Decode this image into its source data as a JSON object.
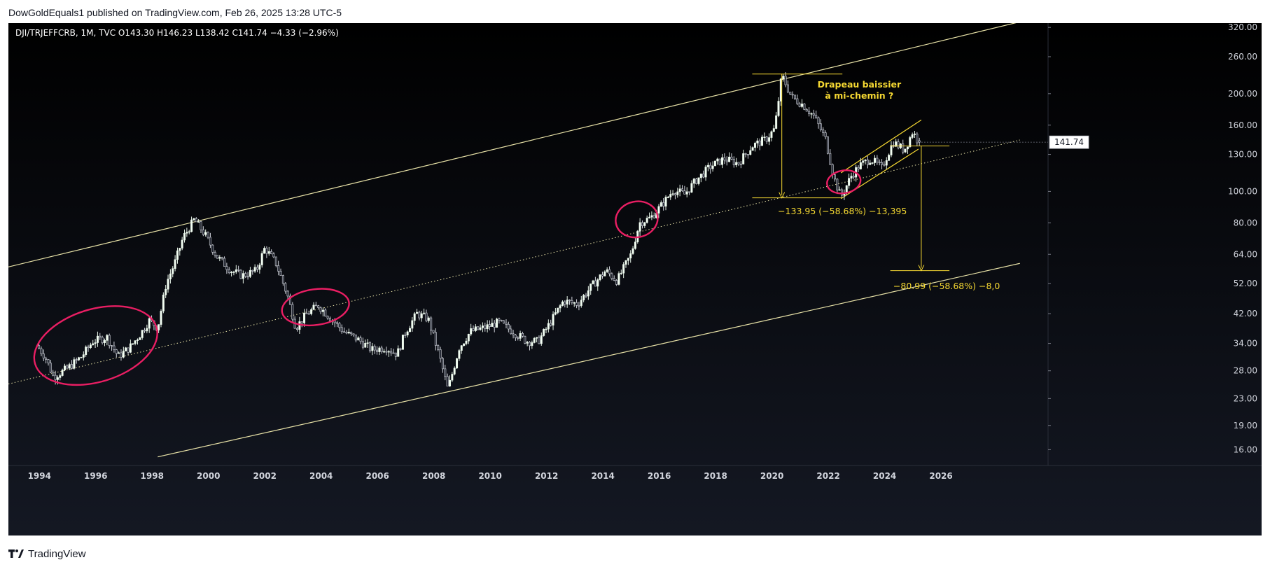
{
  "published_line": "DowGoldEquals1 published on TradingView.com, Feb 26, 2025 13:28 UTC-5",
  "footer": {
    "brand": "TradingView",
    "logo_icon": "tradingview-logo-icon"
  },
  "colors": {
    "background_top": "#000000",
    "background_bottom": "#141823",
    "channel_line": "#e9e3a8",
    "annotation_yellow": "#f5d832",
    "ellipse": "#e91e63",
    "candle_up": "#e8f5e9",
    "candle_down": "#d1d4dc",
    "axis_text": "#d1d4dc"
  },
  "chart_data": {
    "type": "candlestick",
    "symbol_line": "DJI/TRJEFFCRB, 1M, TVC  O143.30  H146.23  L138.42  C141.74  −4.33 (−2.96%)",
    "ohlc": {
      "open": 143.3,
      "high": 146.23,
      "low": 138.42,
      "close": 141.74,
      "change": -4.33,
      "change_pct": -2.96
    },
    "y_scale": "log",
    "y_ticks": [
      "320.00",
      "260.00",
      "200.00",
      "160.00",
      "130.00",
      "100.00",
      "80.00",
      "64.00",
      "52.00",
      "42.00",
      "34.00",
      "28.00",
      "23.00",
      "19.00",
      "16.00"
    ],
    "x_ticks": [
      "1994",
      "1996",
      "1998",
      "2000",
      "2002",
      "2004",
      "2006",
      "2008",
      "2010",
      "2012",
      "2014",
      "2016",
      "2018",
      "2020",
      "2022",
      "2024",
      "2026"
    ],
    "xlim": [
      1992.9,
      2029.8
    ],
    "ylim": [
      14.3,
      330
    ],
    "last_price_label": "141.74",
    "last_price": 141.74,
    "price_path": [
      [
        1993.9,
        33.5
      ],
      [
        1994.2,
        31
      ],
      [
        1994.5,
        26.8
      ],
      [
        1995.0,
        28.5
      ],
      [
        1995.5,
        31
      ],
      [
        1995.9,
        34.5
      ],
      [
        1996.4,
        35.5
      ],
      [
        1996.8,
        31
      ],
      [
        1997.2,
        33
      ],
      [
        1997.6,
        36.5
      ],
      [
        1997.9,
        40
      ],
      [
        1998.2,
        38
      ],
      [
        1998.5,
        52
      ],
      [
        1998.8,
        60
      ],
      [
        1999.1,
        72
      ],
      [
        1999.5,
        82
      ],
      [
        1999.9,
        73
      ],
      [
        2000.3,
        63
      ],
      [
        2000.8,
        57
      ],
      [
        2001.2,
        55
      ],
      [
        2001.7,
        57
      ],
      [
        2002.0,
        67
      ],
      [
        2002.4,
        60
      ],
      [
        2002.8,
        48
      ],
      [
        2003.1,
        38
      ],
      [
        2003.5,
        42
      ],
      [
        2003.9,
        44.5
      ],
      [
        2004.3,
        41
      ],
      [
        2004.8,
        37
      ],
      [
        2005.3,
        35
      ],
      [
        2005.8,
        32.5
      ],
      [
        2006.3,
        33
      ],
      [
        2006.7,
        31.5
      ],
      [
        2007.0,
        37
      ],
      [
        2007.4,
        42
      ],
      [
        2007.8,
        40.5
      ],
      [
        2008.2,
        31
      ],
      [
        2008.5,
        24.5
      ],
      [
        2008.9,
        33
      ],
      [
        2009.3,
        37
      ],
      [
        2009.8,
        38
      ],
      [
        2010.3,
        39.5
      ],
      [
        2010.8,
        37
      ],
      [
        2011.3,
        34.5
      ],
      [
        2011.7,
        34.5
      ],
      [
        2012.1,
        39
      ],
      [
        2012.6,
        46
      ],
      [
        2013.1,
        45
      ],
      [
        2013.6,
        51
      ],
      [
        2014.1,
        57
      ],
      [
        2014.5,
        53
      ],
      [
        2015.0,
        64
      ],
      [
        2015.3,
        80
      ],
      [
        2015.7,
        83
      ],
      [
        2016.1,
        91
      ],
      [
        2016.5,
        101
      ],
      [
        2016.9,
        98
      ],
      [
        2017.3,
        108
      ],
      [
        2017.8,
        119
      ],
      [
        2018.3,
        126
      ],
      [
        2018.8,
        122
      ],
      [
        2019.3,
        138
      ],
      [
        2019.8,
        145
      ],
      [
        2020.1,
        156
      ],
      [
        2020.35,
        228
      ],
      [
        2020.7,
        195
      ],
      [
        2021.1,
        185
      ],
      [
        2021.5,
        170
      ],
      [
        2021.9,
        145
      ],
      [
        2022.2,
        110
      ],
      [
        2022.45,
        96
      ],
      [
        2022.8,
        111
      ],
      [
        2023.1,
        120
      ],
      [
        2023.5,
        126
      ],
      [
        2023.9,
        118
      ],
      [
        2024.3,
        142
      ],
      [
        2024.7,
        134
      ],
      [
        2025.0,
        153
      ],
      [
        2025.2,
        141.74
      ]
    ],
    "trend_lines": [
      {
        "name": "channel-upper",
        "from": [
          1992.9,
          58.5
        ],
        "to": [
          2028.8,
          333
        ],
        "style": "solid"
      },
      {
        "name": "channel-middle",
        "from": [
          1992.9,
          25.5
        ],
        "to": [
          2028.8,
          144
        ],
        "style": "dotted"
      },
      {
        "name": "channel-lower",
        "from": [
          1998.2,
          15.2
        ],
        "to": [
          2028.8,
          60
        ],
        "style": "solid"
      },
      {
        "name": "flag-upper",
        "from": [
          2022.45,
          114
        ],
        "to": [
          2025.3,
          166
        ],
        "style": "solid"
      },
      {
        "name": "flag-lower",
        "from": [
          2022.45,
          95
        ],
        "to": [
          2025.2,
          135
        ],
        "style": "solid"
      }
    ],
    "measurements": [
      {
        "name": "top-drop",
        "from": [
          2020.35,
          230
        ],
        "to": [
          2020.35,
          95.5
        ],
        "band": [
          2019.3,
          2022.5
        ],
        "label": "−133.95 (−58.68%) −13,395",
        "label_at": [
          2022.5,
          85
        ]
      },
      {
        "name": "projection",
        "from": [
          2025.3,
          138
        ],
        "to": [
          2025.3,
          57
        ],
        "band": [
          2024.2,
          2026.3
        ],
        "label": "−80.99 (−58.68%) −8,0",
        "label_at": [
          2026.2,
          50
        ]
      }
    ],
    "ellipses": [
      {
        "name": "ellipse-1995",
        "center": [
          1996.0,
          33.5
        ],
        "rx_years": 2.25,
        "ry_log": 0.112,
        "angle": -17
      },
      {
        "name": "ellipse-2003",
        "center": [
          2003.8,
          44
        ],
        "rx_years": 1.2,
        "ry_log": 0.055,
        "angle": -8
      },
      {
        "name": "ellipse-2015",
        "center": [
          2015.2,
          82
        ],
        "rx_years": 0.75,
        "ry_log": 0.055,
        "angle": -12
      },
      {
        "name": "ellipse-2022",
        "center": [
          2022.55,
          107
        ],
        "rx_years": 0.6,
        "ry_log": 0.035,
        "angle": -10
      }
    ],
    "annotation": {
      "text_line1": "Drapeau baissier",
      "text_line2": "à mi-chemin ?",
      "at": [
        2023.1,
        195
      ]
    }
  }
}
